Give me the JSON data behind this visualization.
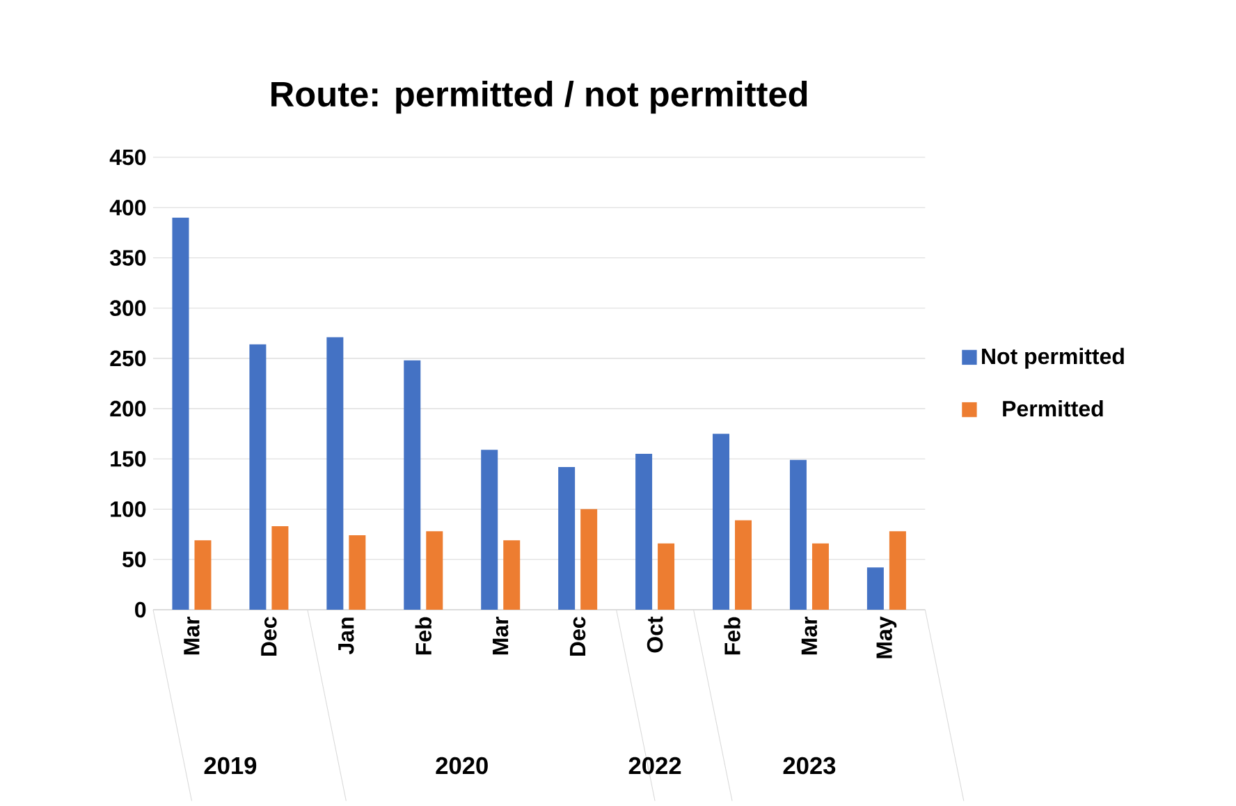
{
  "chart_data": {
    "type": "bar",
    "title": "Route: permitted / not permitted",
    "categories": [
      "Mar",
      "Dec",
      "Jan",
      "Feb",
      "Mar",
      "Dec",
      "Oct",
      "Feb",
      "Mar",
      "May"
    ],
    "series": [
      {
        "name": "Not permitted",
        "color": "#4472c4",
        "values": [
          390,
          264,
          271,
          248,
          159,
          142,
          155,
          175,
          149,
          42
        ]
      },
      {
        "name": "Permitted",
        "color": "#ed7d31",
        "values": [
          69,
          83,
          74,
          78,
          69,
          100,
          66,
          89,
          66,
          78
        ]
      }
    ],
    "annotations": [
      "2019",
      "2020",
      "2022",
      "2023"
    ],
    "ylim": [
      0,
      450
    ],
    "yticks": [
      0,
      50,
      100,
      150,
      200,
      250,
      300,
      350,
      400,
      450
    ],
    "grid": "y",
    "legend": "right"
  }
}
